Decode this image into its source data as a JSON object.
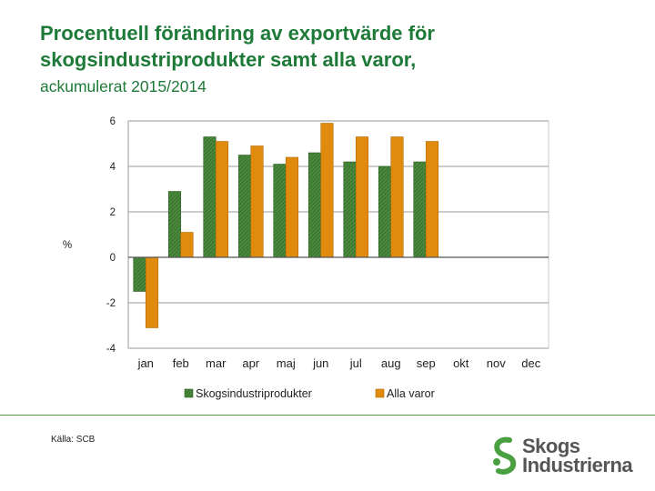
{
  "page": {
    "title": "Procentuell förändring av exportvärde för skogsindustriprodukter samt alla varor,",
    "subtitle": "ackumulerat 2015/2014",
    "source": "Källa: SCB"
  },
  "logo": {
    "line1": "Skogs",
    "line2": "Industrierna"
  },
  "chart_data": {
    "type": "bar",
    "ylabel": "%",
    "ylim": [
      -4,
      6
    ],
    "yticks": [
      -4,
      -2,
      0,
      2,
      4,
      6
    ],
    "grid": true,
    "legend_position": "bottom",
    "categories": [
      "jan",
      "feb",
      "mar",
      "apr",
      "maj",
      "jun",
      "jul",
      "aug",
      "sep",
      "okt",
      "nov",
      "dec"
    ],
    "series": [
      {
        "name": "Skogsindustriprodukter",
        "color": "#4a8a3c",
        "pattern": "hatched",
        "values": [
          -1.5,
          2.9,
          5.3,
          4.5,
          4.1,
          4.6,
          4.2,
          4.0,
          4.2,
          null,
          null,
          null
        ]
      },
      {
        "name": "Alla varor",
        "color": "#e08a0e",
        "pattern": "solid",
        "values": [
          -3.1,
          1.1,
          5.1,
          4.9,
          4.4,
          5.9,
          5.3,
          5.3,
          5.1,
          null,
          null,
          null
        ]
      }
    ]
  }
}
